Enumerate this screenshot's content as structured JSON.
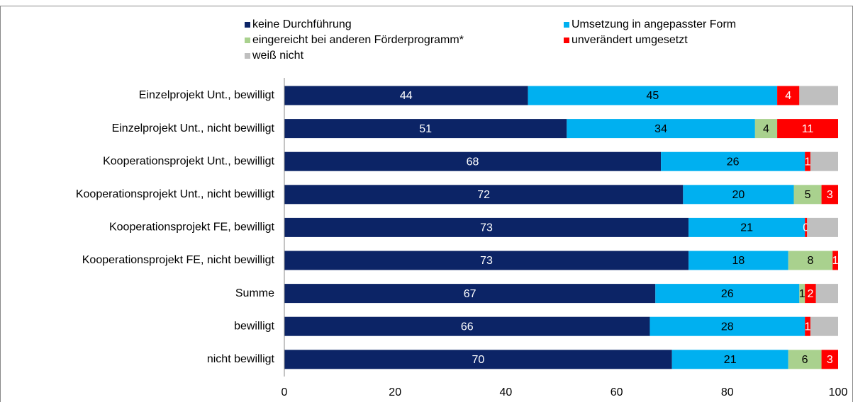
{
  "chart_data": {
    "type": "bar",
    "orientation": "horizontal",
    "stacked": true,
    "categories": [
      "Einzelprojekt Unt., bewilligt",
      "Einzelprojekt Unt., nicht bewilligt",
      "Kooperationsprojekt Unt., bewilligt",
      "Kooperationsprojekt Unt., nicht bewilligt",
      "Kooperationsprojekt FE, bewilligt",
      "Kooperationsprojekt FE, nicht bewilligt",
      "Summe",
      "bewilligt",
      "nicht bewilligt"
    ],
    "series": [
      {
        "name": "keine Durchführung",
        "color": "#0c2466",
        "label_color": "#ffffff",
        "values": [
          44,
          51,
          68,
          72,
          73,
          73,
          67,
          66,
          70
        ],
        "value_labels": [
          "44",
          "51",
          "68",
          "72",
          "73",
          "73",
          "67",
          "66",
          "70"
        ]
      },
      {
        "name": "Umsetzung in angepasster Form",
        "color": "#00b0f0",
        "label_color": "#000000",
        "values": [
          45,
          34,
          26,
          20,
          21,
          18,
          26,
          28,
          21
        ],
        "value_labels": [
          "45",
          "34",
          "26",
          "20",
          "21",
          "18",
          "26",
          "28",
          "21"
        ]
      },
      {
        "name": "eingereicht bei anderen Förderprogramm*",
        "color": "#a9d18e",
        "label_color": "#000000",
        "values": [
          0,
          4,
          0,
          5,
          0,
          8,
          1,
          0,
          6
        ],
        "value_labels": [
          null,
          "4",
          null,
          "5",
          null,
          "8",
          "1",
          null,
          "6"
        ]
      },
      {
        "name": "unverändert umgesetzt",
        "color": "#ff0000",
        "label_color": "#ffffff",
        "values": [
          4,
          11,
          1,
          3,
          0.4,
          1,
          2,
          1,
          3
        ],
        "value_labels": [
          "4",
          "11",
          "1",
          "3",
          "0",
          "1",
          "2",
          "1",
          "3"
        ]
      },
      {
        "name": "weiß nicht",
        "color": "#bfbfbf",
        "label_color": "#000000",
        "values": [
          7,
          0,
          5,
          0,
          5.6,
          0,
          4,
          5,
          0
        ],
        "value_labels": [
          null,
          null,
          null,
          null,
          null,
          null,
          null,
          null,
          null
        ]
      }
    ],
    "xlim": [
      0,
      100
    ],
    "xticks": [
      0,
      20,
      40,
      60,
      80,
      100
    ],
    "grid": false
  }
}
